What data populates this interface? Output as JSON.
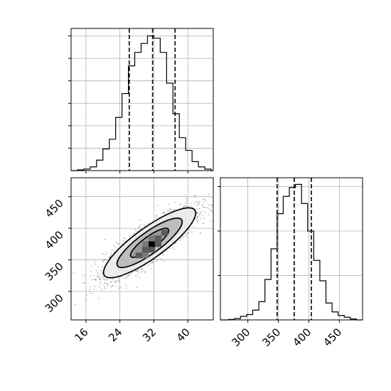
{
  "chart_data": [
    {
      "type": "histogram",
      "panel": "marginal-top",
      "variable": "x",
      "bins": [
        {
          "x0": 14.0,
          "x1": 15.5,
          "count": 1
        },
        {
          "x0": 15.5,
          "x1": 17.0,
          "count": 2
        },
        {
          "x0": 17.0,
          "x1": 18.5,
          "count": 5
        },
        {
          "x0": 18.5,
          "x1": 20.0,
          "count": 14
        },
        {
          "x0": 20.0,
          "x1": 21.5,
          "count": 29
        },
        {
          "x0": 21.5,
          "x1": 23.0,
          "count": 42
        },
        {
          "x0": 23.0,
          "x1": 24.5,
          "count": 71
        },
        {
          "x0": 24.5,
          "x1": 26.0,
          "count": 103
        },
        {
          "x0": 26.0,
          "x1": 27.5,
          "count": 140
        },
        {
          "x0": 27.5,
          "x1": 29.0,
          "count": 158
        },
        {
          "x0": 29.0,
          "x1": 30.5,
          "count": 170
        },
        {
          "x0": 30.5,
          "x1": 32.0,
          "count": 180
        },
        {
          "x0": 32.0,
          "x1": 33.5,
          "count": 177
        },
        {
          "x0": 33.5,
          "x1": 35.0,
          "count": 158
        },
        {
          "x0": 35.0,
          "x1": 36.5,
          "count": 117
        },
        {
          "x0": 36.5,
          "x1": 38.0,
          "count": 76
        },
        {
          "x0": 38.0,
          "x1": 39.5,
          "count": 44
        },
        {
          "x0": 39.5,
          "x1": 41.0,
          "count": 27
        },
        {
          "x0": 41.0,
          "x1": 42.5,
          "count": 12
        },
        {
          "x0": 42.5,
          "x1": 44.0,
          "count": 5
        },
        {
          "x0": 44.0,
          "x1": 45.5,
          "count": 2
        }
      ],
      "quantiles": [
        26.2,
        31.7,
        37.0
      ],
      "xlim": [
        12.5,
        46.0
      ],
      "ylim": [
        0,
        190
      ],
      "ytick_values": [
        30,
        60,
        90,
        120,
        150,
        180
      ],
      "grid": true
    },
    {
      "type": "scatter",
      "panel": "joint",
      "variables": [
        "x",
        "y"
      ],
      "mean": [
        31.0,
        377.0
      ],
      "std": [
        5.3,
        27.0
      ],
      "correlation": 0.85,
      "density_peak": [
        31.5,
        375
      ],
      "contour_levels": [
        "inner",
        "middle",
        "outer"
      ],
      "xlim": [
        12.5,
        46.0
      ],
      "ylim": [
        255,
        480
      ],
      "xtick_labels": [
        "16",
        "24",
        "32",
        "40"
      ],
      "xtick_values": [
        16,
        24,
        32,
        40
      ],
      "ytick_labels": [
        "300",
        "350",
        "400",
        "450"
      ],
      "ytick_values": [
        300,
        350,
        400,
        450
      ],
      "grid": true
    },
    {
      "type": "histogram",
      "panel": "marginal-right",
      "variable": "y",
      "bins": [
        {
          "x0": 268,
          "x1": 278,
          "count": 1
        },
        {
          "x0": 278,
          "x1": 288,
          "count": 3
        },
        {
          "x0": 288,
          "x1": 298,
          "count": 8
        },
        {
          "x0": 298,
          "x1": 308,
          "count": 12
        },
        {
          "x0": 308,
          "x1": 318,
          "count": 22
        },
        {
          "x0": 318,
          "x1": 328,
          "count": 41
        },
        {
          "x0": 328,
          "x1": 338,
          "count": 91
        },
        {
          "x0": 338,
          "x1": 348,
          "count": 160
        },
        {
          "x0": 348,
          "x1": 358,
          "count": 239
        },
        {
          "x0": 358,
          "x1": 368,
          "count": 278
        },
        {
          "x0": 368,
          "x1": 378,
          "count": 298
        },
        {
          "x0": 378,
          "x1": 388,
          "count": 305
        },
        {
          "x0": 388,
          "x1": 398,
          "count": 262
        },
        {
          "x0": 398,
          "x1": 408,
          "count": 200
        },
        {
          "x0": 408,
          "x1": 418,
          "count": 134
        },
        {
          "x0": 418,
          "x1": 428,
          "count": 88
        },
        {
          "x0": 428,
          "x1": 438,
          "count": 38
        },
        {
          "x0": 438,
          "x1": 448,
          "count": 18
        },
        {
          "x0": 448,
          "x1": 458,
          "count": 10
        },
        {
          "x0": 458,
          "x1": 468,
          "count": 6
        },
        {
          "x0": 468,
          "x1": 478,
          "count": 2
        }
      ],
      "quantiles": [
        348,
        376,
        404
      ],
      "xlim": [
        255,
        488
      ],
      "ylim": [
        0,
        320
      ],
      "ytick_values": [
        100,
        200,
        300
      ],
      "xtick_labels": [
        "300",
        "350",
        "400",
        "450"
      ],
      "xtick_values": [
        300,
        350,
        400,
        450
      ],
      "grid": true
    }
  ],
  "colors": {
    "line": "#000000",
    "grid": "#b0b0b0",
    "points": "#808080",
    "fill_light": "#ebebeb",
    "fill_mid": "#bdbdbd",
    "fill_dark": "#5a5a5a",
    "fill_peak": "#000000"
  }
}
